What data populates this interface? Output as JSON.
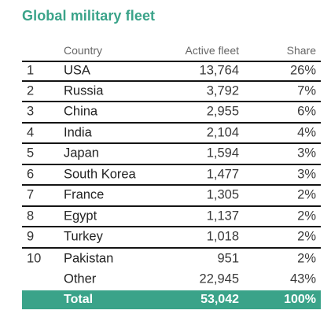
{
  "title": "Global military fleet",
  "chart_data": {
    "type": "table",
    "title": "Global military fleet",
    "columns": [
      "",
      "Country",
      "Active fleet",
      "Share"
    ],
    "rows": [
      {
        "rank": "1",
        "country": "USA",
        "fleet": "13,764",
        "share": "26%"
      },
      {
        "rank": "2",
        "country": "Russia",
        "fleet": "3,792",
        "share": "7%"
      },
      {
        "rank": "3",
        "country": "China",
        "fleet": "2,955",
        "share": "6%"
      },
      {
        "rank": "4",
        "country": "India",
        "fleet": "2,104",
        "share": "4%"
      },
      {
        "rank": "5",
        "country": "Japan",
        "fleet": "1,594",
        "share": "3%"
      },
      {
        "rank": "6",
        "country": "South Korea",
        "fleet": "1,477",
        "share": "3%"
      },
      {
        "rank": "7",
        "country": "France",
        "fleet": "1,305",
        "share": "2%"
      },
      {
        "rank": "8",
        "country": "Egypt",
        "fleet": "1,137",
        "share": "2%"
      },
      {
        "rank": "9",
        "country": "Turkey",
        "fleet": "1,018",
        "share": "2%"
      },
      {
        "rank": "10",
        "country": "Pakistan",
        "fleet": "951",
        "share": "2%"
      },
      {
        "rank": "",
        "country": "Other",
        "fleet": "22,945",
        "share": "43%"
      }
    ],
    "total": {
      "label": "Total",
      "fleet": "53,042",
      "share": "100%"
    }
  },
  "colors": {
    "accent": "#3aa389",
    "rule": "#141414"
  }
}
